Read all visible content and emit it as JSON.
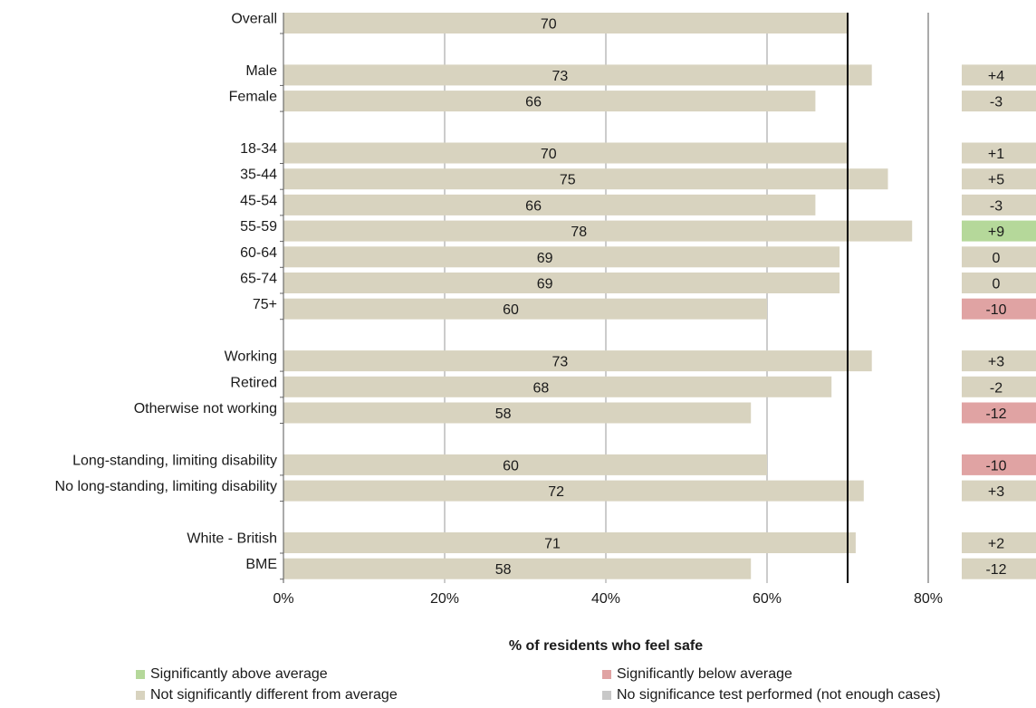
{
  "chart_data": {
    "type": "bar",
    "orientation": "horizontal",
    "xlabel": "% of residents who feel safe",
    "ylabel": "",
    "xlim": [
      0,
      80
    ],
    "xticks": [
      "0%",
      "20%",
      "40%",
      "60%",
      "80%"
    ],
    "average_line": 70,
    "groups": [
      {
        "rows": [
          {
            "label": "Overall",
            "value": 70,
            "diff": "",
            "status": "none"
          }
        ]
      },
      {
        "rows": [
          {
            "label": "Male",
            "value": 73,
            "diff": "+4",
            "status": "not_significant"
          },
          {
            "label": "Female",
            "value": 66,
            "diff": "-3",
            "status": "not_significant"
          }
        ]
      },
      {
        "rows": [
          {
            "label": "18-34",
            "value": 70,
            "diff": "+1",
            "status": "not_significant"
          },
          {
            "label": "35-44",
            "value": 75,
            "diff": "+5",
            "status": "not_significant"
          },
          {
            "label": "45-54",
            "value": 66,
            "diff": "-3",
            "status": "not_significant"
          },
          {
            "label": "55-59",
            "value": 78,
            "diff": "+9",
            "status": "above"
          },
          {
            "label": "60-64",
            "value": 69,
            "diff": "0",
            "status": "not_significant"
          },
          {
            "label": "65-74",
            "value": 69,
            "diff": "0",
            "status": "not_significant"
          },
          {
            "label": "75+",
            "value": 60,
            "diff": "-10",
            "status": "below"
          }
        ]
      },
      {
        "rows": [
          {
            "label": "Working",
            "value": 73,
            "diff": "+3",
            "status": "not_significant"
          },
          {
            "label": "Retired",
            "value": 68,
            "diff": "-2",
            "status": "not_significant"
          },
          {
            "label": "Otherwise not working",
            "value": 58,
            "diff": "-12",
            "status": "below"
          }
        ]
      },
      {
        "rows": [
          {
            "label": "Long-standing, limiting disability",
            "value": 60,
            "diff": "-10",
            "status": "below"
          },
          {
            "label": "No long-standing, limiting disability",
            "value": 72,
            "diff": "+3",
            "status": "not_significant"
          }
        ]
      },
      {
        "rows": [
          {
            "label": "White - British",
            "value": 71,
            "diff": "+2",
            "status": "not_significant"
          },
          {
            "label": "BME",
            "value": 58,
            "diff": "-12",
            "status": "not_significant"
          }
        ]
      }
    ]
  },
  "colors": {
    "bar": "#d8d3bf",
    "above": "#b5d89a",
    "below": "#e0a3a3",
    "not_significant": "#d8d3bf",
    "no_test": "#c8c8c8",
    "average_line": "#000000",
    "grid": "#9a9a9a"
  },
  "legend": {
    "above": "Significantly above average",
    "below": "Significantly below average",
    "not_significant": "Not significantly different from average",
    "no_test": "No significance test performed (not enough cases)"
  }
}
